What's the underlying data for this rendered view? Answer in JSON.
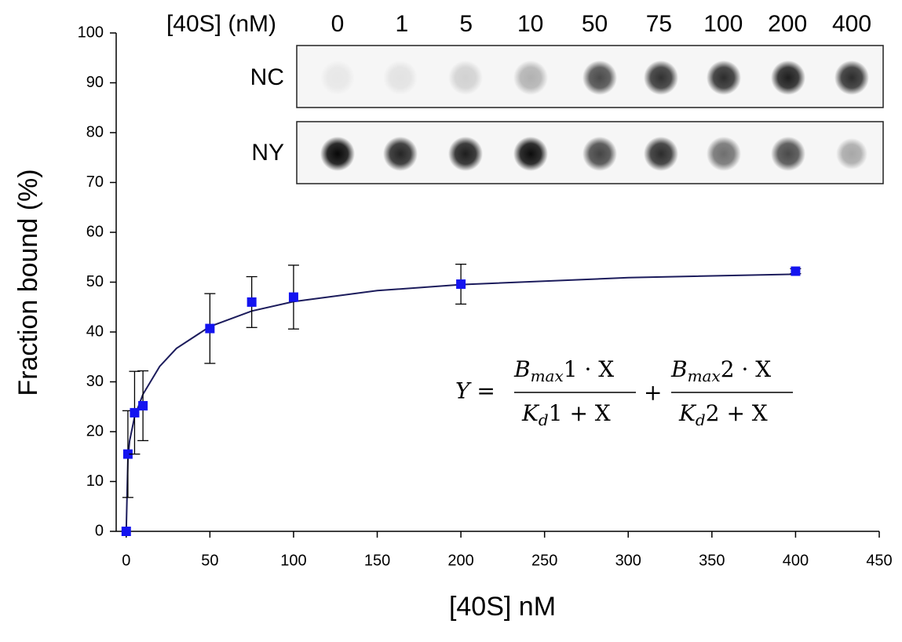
{
  "chart_data": {
    "type": "scatter",
    "x_label": "[40S] nM",
    "y_label": "Fraction bound (%)",
    "xlim": [
      -6,
      450
    ],
    "xticks": [
      0,
      50,
      100,
      150,
      200,
      250,
      300,
      350,
      400,
      450
    ],
    "ylim": [
      0,
      100
    ],
    "yticks": [
      0,
      10,
      20,
      30,
      40,
      50,
      60,
      70,
      80,
      90,
      100
    ],
    "series": [
      {
        "color": "#1414f0",
        "x": [
          0,
          1,
          5,
          10,
          50,
          75,
          100,
          200,
          400
        ],
        "values": [
          0,
          15.5,
          23.8,
          25.2,
          40.7,
          46,
          47,
          49.6,
          52.2
        ],
        "errors": [
          0,
          8.7,
          8.3,
          7,
          7,
          5.1,
          6.4,
          4,
          0.5
        ]
      }
    ],
    "fit": {
      "color": "#1c1c5c",
      "x": [
        0,
        1,
        2,
        5,
        10,
        20,
        30,
        50,
        75,
        100,
        150,
        200,
        300,
        400
      ],
      "values": [
        0,
        14.4,
        18.1,
        23.0,
        27.5,
        33.1,
        36.7,
        41.1,
        44.2,
        46.1,
        48.3,
        49.5,
        50.9,
        51.6
      ]
    },
    "equation": {
      "lhs": "Y =",
      "plus": "+",
      "terms": [
        {
          "num_sym": "B",
          "num_sub": "max",
          "num_rest": "1 · X",
          "den_sym": "K",
          "den_sub": "d",
          "den_rest": "1 + X"
        },
        {
          "num_sym": "B",
          "num_sub": "max",
          "num_rest": "2 · X",
          "den_sym": "K",
          "den_sub": "d",
          "den_rest": "2 + X"
        }
      ]
    },
    "blot": {
      "header": "[40S] (nM)",
      "lanes": [
        "0",
        "1",
        "5",
        "10",
        "50",
        "75",
        "100",
        "200",
        "400"
      ],
      "rows": [
        "NC",
        "NY"
      ]
    }
  }
}
